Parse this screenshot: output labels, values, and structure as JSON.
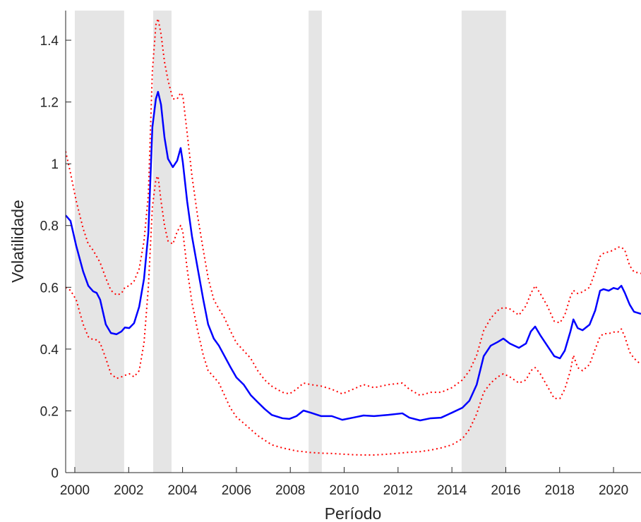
{
  "chart_data": {
    "type": "line",
    "xlabel": "Período",
    "ylabel": "Volatilidade",
    "xlim": [
      1999.66,
      2021.02
    ],
    "ylim": [
      0,
      1.496
    ],
    "xticks": [
      2000,
      2002,
      2004,
      2006,
      2008,
      2010,
      2012,
      2014,
      2016,
      2018,
      2020
    ],
    "yticks": [
      0,
      0.2,
      0.4,
      0.6,
      0.8,
      1,
      1.2,
      1.4
    ],
    "grid": false,
    "shaded_periods": [
      [
        2000.0,
        2001.83
      ],
      [
        2002.91,
        2003.59
      ],
      [
        2008.68,
        2009.17
      ],
      [
        2014.36,
        2016.01
      ]
    ],
    "shade_color": "#e5e5e5",
    "x": [
      1999.66,
      1999.84,
      2000.05,
      2000.31,
      2000.5,
      2000.68,
      2000.81,
      2000.94,
      2001.15,
      2001.34,
      2001.55,
      2001.73,
      2001.86,
      2002.02,
      2002.2,
      2002.39,
      2002.57,
      2002.73,
      2002.88,
      2003.01,
      2003.09,
      2003.2,
      2003.33,
      2003.46,
      2003.64,
      2003.8,
      2003.93,
      2004.01,
      2004.17,
      2004.35,
      2004.56,
      2004.77,
      2004.95,
      2005.16,
      2005.35,
      2005.56,
      2005.77,
      2006.0,
      2006.27,
      2006.53,
      2006.79,
      2007.05,
      2007.31,
      2007.71,
      2007.97,
      2008.23,
      2008.49,
      2008.76,
      2009.15,
      2009.54,
      2009.93,
      2010.33,
      2010.72,
      2011.11,
      2011.64,
      2012.16,
      2012.42,
      2012.82,
      2013.21,
      2013.6,
      2014.0,
      2014.39,
      2014.65,
      2014.92,
      2015.18,
      2015.44,
      2015.7,
      2015.91,
      2016.15,
      2016.49,
      2016.75,
      2016.93,
      2017.09,
      2017.28,
      2017.54,
      2017.8,
      2018.01,
      2018.19,
      2018.4,
      2018.51,
      2018.67,
      2018.85,
      2019.11,
      2019.32,
      2019.5,
      2019.63,
      2019.82,
      2020.0,
      2020.16,
      2020.29,
      2020.42,
      2020.6,
      2020.76,
      2021.02
    ],
    "series": [
      {
        "color": "#ff0000",
        "style": "dotted",
        "values": [
          1.04,
          0.97,
          0.88,
          0.79,
          0.74,
          0.72,
          0.7,
          0.68,
          0.63,
          0.59,
          0.575,
          0.58,
          0.6,
          0.605,
          0.62,
          0.66,
          0.75,
          0.9,
          1.3,
          1.45,
          1.47,
          1.42,
          1.33,
          1.27,
          1.21,
          1.21,
          1.23,
          1.22,
          1.1,
          0.96,
          0.83,
          0.72,
          0.63,
          0.56,
          0.53,
          0.5,
          0.46,
          0.42,
          0.395,
          0.37,
          0.33,
          0.3,
          0.28,
          0.26,
          0.255,
          0.27,
          0.29,
          0.285,
          0.28,
          0.27,
          0.255,
          0.27,
          0.285,
          0.275,
          0.285,
          0.29,
          0.27,
          0.25,
          0.26,
          0.26,
          0.275,
          0.3,
          0.33,
          0.38,
          0.46,
          0.5,
          0.525,
          0.535,
          0.53,
          0.51,
          0.54,
          0.58,
          0.605,
          0.58,
          0.54,
          0.49,
          0.485,
          0.51,
          0.57,
          0.59,
          0.58,
          0.585,
          0.6,
          0.65,
          0.7,
          0.71,
          0.715,
          0.72,
          0.73,
          0.73,
          0.72,
          0.67,
          0.65,
          0.645
        ]
      },
      {
        "color": "#ff0000",
        "style": "dotted",
        "values": [
          0.6,
          0.59,
          0.56,
          0.48,
          0.44,
          0.43,
          0.43,
          0.42,
          0.37,
          0.32,
          0.305,
          0.31,
          0.315,
          0.32,
          0.31,
          0.33,
          0.42,
          0.6,
          0.86,
          0.95,
          0.96,
          0.88,
          0.8,
          0.75,
          0.74,
          0.78,
          0.8,
          0.78,
          0.66,
          0.55,
          0.46,
          0.38,
          0.33,
          0.31,
          0.29,
          0.25,
          0.21,
          0.18,
          0.16,
          0.14,
          0.12,
          0.105,
          0.09,
          0.08,
          0.075,
          0.07,
          0.068,
          0.065,
          0.063,
          0.062,
          0.06,
          0.058,
          0.057,
          0.057,
          0.06,
          0.064,
          0.066,
          0.068,
          0.073,
          0.08,
          0.09,
          0.11,
          0.14,
          0.19,
          0.26,
          0.29,
          0.31,
          0.32,
          0.31,
          0.29,
          0.3,
          0.33,
          0.34,
          0.32,
          0.28,
          0.24,
          0.24,
          0.27,
          0.33,
          0.38,
          0.34,
          0.33,
          0.35,
          0.4,
          0.44,
          0.45,
          0.45,
          0.455,
          0.455,
          0.465,
          0.44,
          0.39,
          0.37,
          0.35
        ]
      },
      {
        "color": "#0000ff",
        "style": "solid",
        "values": [
          0.833,
          0.815,
          0.735,
          0.651,
          0.605,
          0.587,
          0.582,
          0.56,
          0.48,
          0.452,
          0.448,
          0.457,
          0.47,
          0.468,
          0.484,
          0.537,
          0.628,
          0.776,
          1.119,
          1.21,
          1.233,
          1.192,
          1.085,
          1.016,
          0.989,
          1.01,
          1.051,
          1.005,
          0.879,
          0.765,
          0.662,
          0.56,
          0.48,
          0.434,
          0.411,
          0.377,
          0.343,
          0.308,
          0.285,
          0.251,
          0.228,
          0.206,
          0.187,
          0.176,
          0.174,
          0.183,
          0.201,
          0.194,
          0.183,
          0.183,
          0.171,
          0.178,
          0.185,
          0.183,
          0.187,
          0.192,
          0.178,
          0.169,
          0.176,
          0.178,
          0.194,
          0.21,
          0.233,
          0.285,
          0.377,
          0.411,
          0.423,
          0.434,
          0.418,
          0.404,
          0.418,
          0.457,
          0.473,
          0.445,
          0.411,
          0.377,
          0.37,
          0.395,
          0.457,
          0.496,
          0.468,
          0.461,
          0.479,
          0.525,
          0.589,
          0.594,
          0.589,
          0.598,
          0.594,
          0.605,
          0.582,
          0.544,
          0.521,
          0.514
        ]
      }
    ]
  }
}
